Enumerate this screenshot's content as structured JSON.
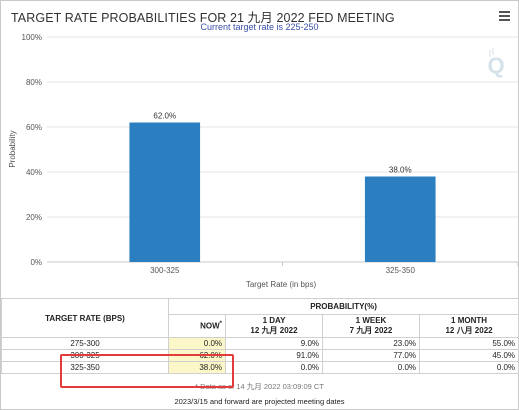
{
  "header": {
    "title": "TARGET RATE PROBABILITIES FOR 21 九月 2022 FED MEETING",
    "subtitle": "Current target rate is 225-250"
  },
  "colors": {
    "bar": "#2b7fc0",
    "highlight": "#e23b3b",
    "now_cell": "#fbf7c9",
    "subtitle": "#3a4fa8"
  },
  "icons": {
    "menu": "menu-icon",
    "logo": "q-logo-icon"
  },
  "chart_data": {
    "type": "bar",
    "title": "TARGET RATE PROBABILITIES FOR 21 九月 2022 FED MEETING",
    "subtitle": "Current target rate is 225-250",
    "xlabel": "Target Rate (in bps)",
    "ylabel": "Probability",
    "categories": [
      "300-325",
      "325-350"
    ],
    "values": [
      62.0,
      38.0
    ],
    "value_labels": [
      "62.0%",
      "38.0%"
    ],
    "ylim": [
      0,
      100
    ],
    "yticks": [
      "0%",
      "20%",
      "40%",
      "60%",
      "80%",
      "100%"
    ],
    "grid": true
  },
  "table": {
    "col_target": "TARGET RATE (BPS)",
    "col_prob": "PROBABILITY(%)",
    "sub_headers": [
      {
        "line1": "NOW",
        "line2": "",
        "marker": "*"
      },
      {
        "line1": "1 DAY",
        "line2": "12 九月 2022"
      },
      {
        "line1": "1 WEEK",
        "line2": "7 九月 2022"
      },
      {
        "line1": "1 MONTH",
        "line2": "12 八月 2022"
      }
    ],
    "rows": [
      {
        "rate": "275-300",
        "now": "0.0%",
        "day": "9.0%",
        "week": "23.0%",
        "month": "55.0%"
      },
      {
        "rate": "300-325",
        "now": "62.0%",
        "day": "91.0%",
        "week": "77.0%",
        "month": "45.0%"
      },
      {
        "rate": "325-350",
        "now": "38.0%",
        "day": "0.0%",
        "week": "0.0%",
        "month": "0.0%"
      }
    ],
    "note": "* Data as of 14 九月 2022 03:09:09 CT",
    "footer": "2023/3/15 and forward are projected meeting dates"
  }
}
